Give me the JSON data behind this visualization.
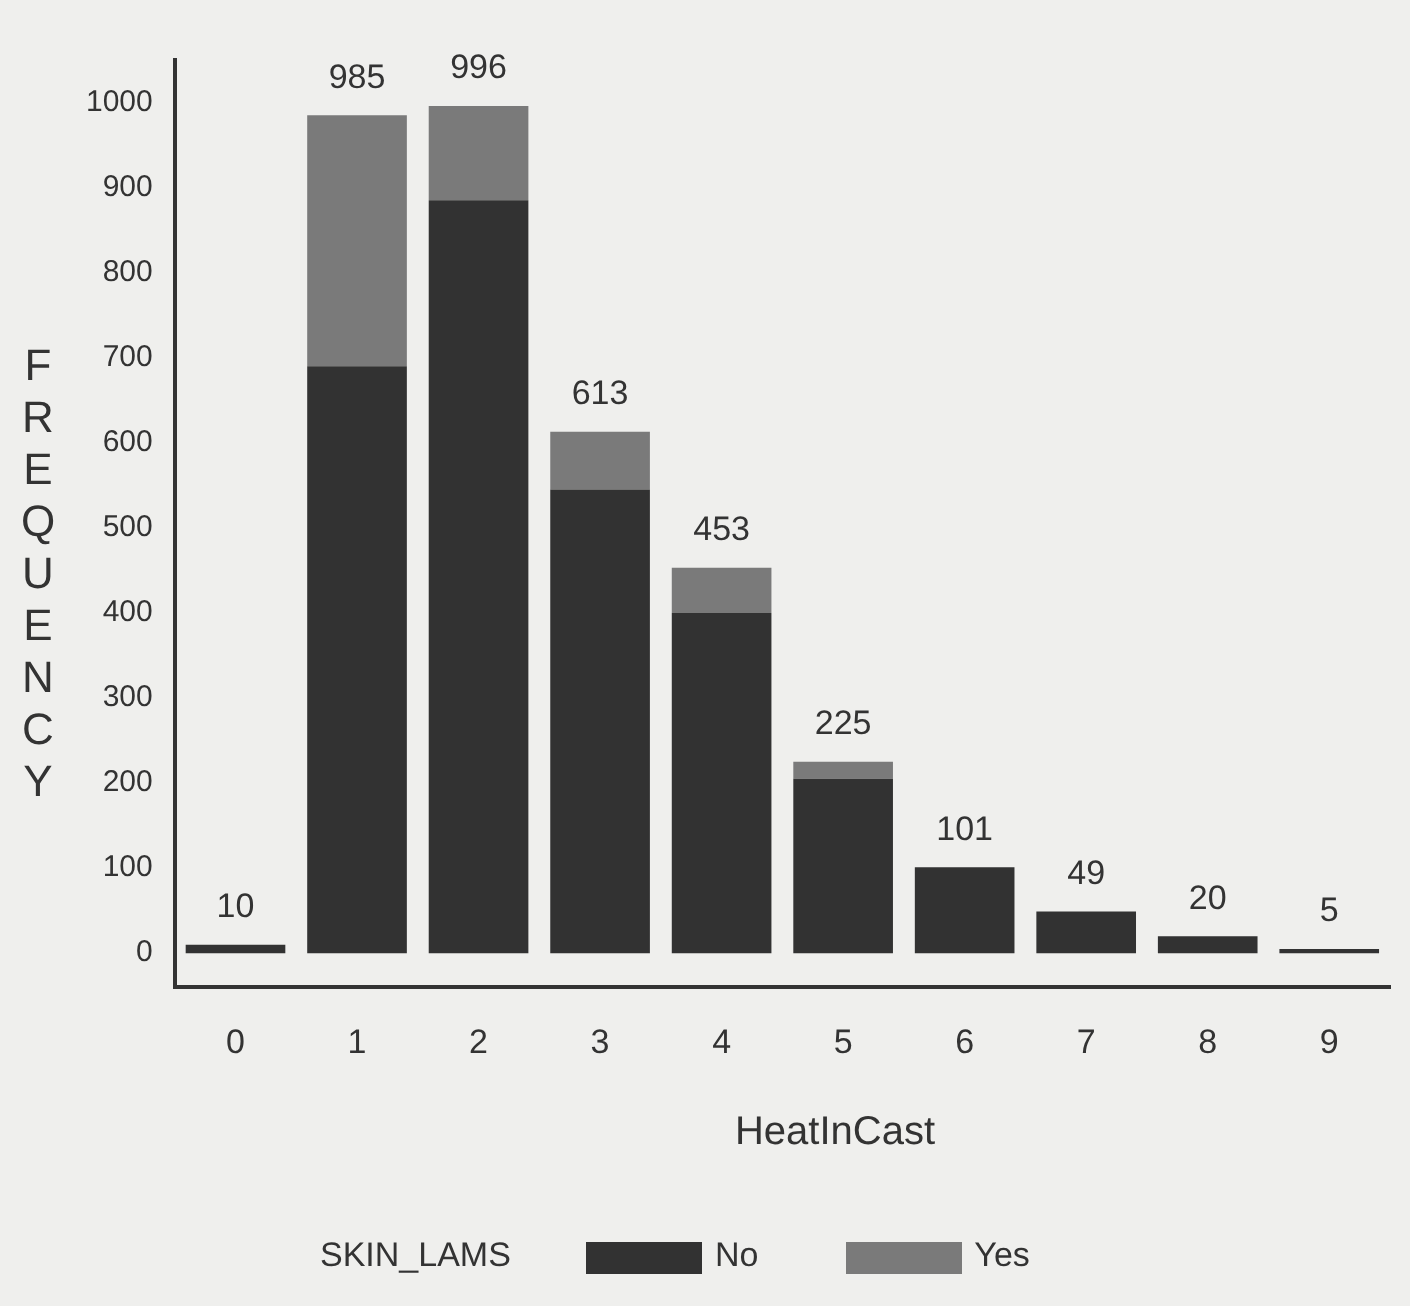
{
  "chart_data": {
    "type": "bar",
    "stacked": true,
    "xlabel": "HeatInCast",
    "ylabel": "FREQUENCY",
    "legend_title": "SKIN_LAMS",
    "legend": "bottom",
    "categories": [
      "0",
      "1",
      "2",
      "3",
      "4",
      "5",
      "6",
      "7",
      "8",
      "9"
    ],
    "series": [
      {
        "name": "No",
        "color": "#323232",
        "values": [
          10,
          690,
          885,
          545,
          400,
          205,
          101,
          49,
          20,
          5
        ]
      },
      {
        "name": "Yes",
        "color": "#7a7a7a",
        "values": [
          0,
          295,
          111,
          68,
          53,
          20,
          0,
          0,
          0,
          0
        ]
      }
    ],
    "totals": [
      "10",
      "985",
      "996",
      "613",
      "453",
      "225",
      "101",
      "49",
      "20",
      "5"
    ],
    "ylim": [
      -40,
      1050
    ],
    "yticks": [
      0,
      100,
      200,
      300,
      400,
      500,
      600,
      700,
      800,
      900,
      1000
    ]
  }
}
